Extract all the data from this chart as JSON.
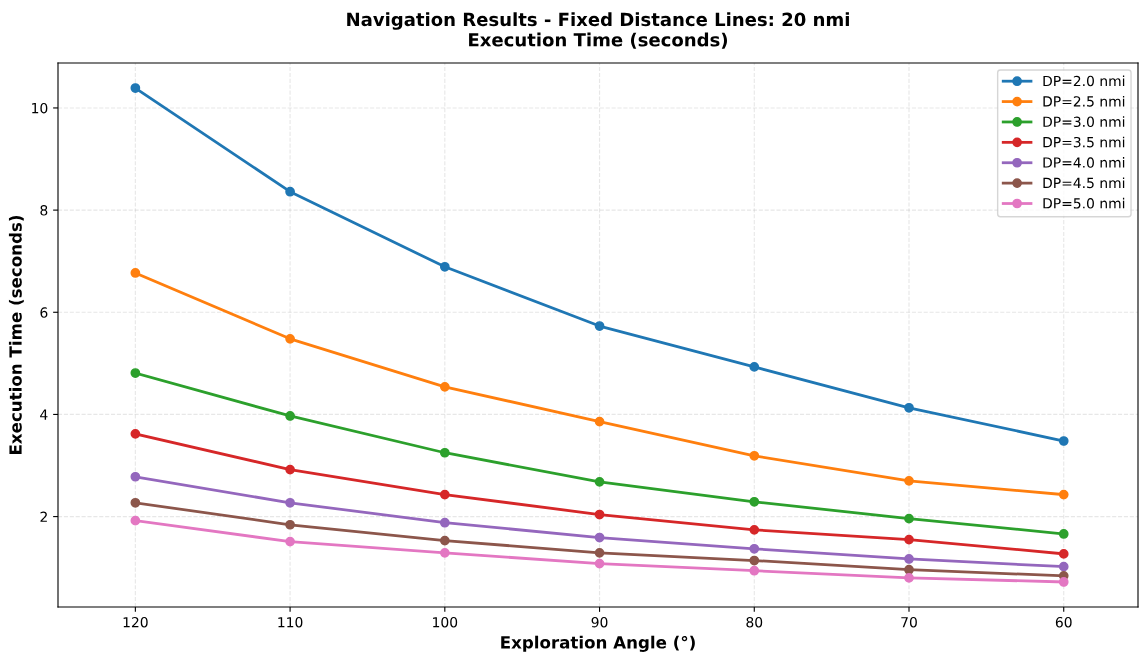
{
  "chart_data": {
    "type": "line",
    "title": "Navigation Results - Fixed Distance Lines: 20 nmi\nExecution Time (seconds)",
    "xlabel": "Exploration Angle (°)",
    "ylabel": "Execution Time (seconds)",
    "x": [
      120,
      110,
      100,
      90,
      80,
      70,
      60
    ],
    "xlim": [
      125,
      55.2
    ],
    "xticks": [
      120,
      110,
      100,
      90,
      80,
      70,
      60
    ],
    "ylim": [
      0.23,
      10.88
    ],
    "yticks": [
      2,
      4,
      6,
      8,
      10
    ],
    "grid": true,
    "legend": "top right",
    "marker": "circle",
    "line_style": "solid",
    "series": [
      {
        "name": "DP=2.0 nmi",
        "color": "#1f77b4",
        "values": [
          10.39,
          8.36,
          6.89,
          5.73,
          4.93,
          4.13,
          3.48
        ]
      },
      {
        "name": "DP=2.5 nmi",
        "color": "#ff7f0e",
        "values": [
          6.77,
          5.48,
          4.54,
          3.86,
          3.19,
          2.7,
          2.43
        ]
      },
      {
        "name": "DP=3.0 nmi",
        "color": "#2ca02c",
        "values": [
          4.81,
          3.97,
          3.25,
          2.68,
          2.29,
          1.96,
          1.66
        ]
      },
      {
        "name": "DP=3.5 nmi",
        "color": "#d62728",
        "values": [
          3.62,
          2.92,
          2.43,
          2.04,
          1.74,
          1.55,
          1.27
        ]
      },
      {
        "name": "DP=4.0 nmi",
        "color": "#9467bd",
        "values": [
          2.78,
          2.27,
          1.88,
          1.59,
          1.37,
          1.17,
          1.02
        ]
      },
      {
        "name": "DP=4.5 nmi",
        "color": "#8c564b",
        "values": [
          2.27,
          1.84,
          1.53,
          1.29,
          1.14,
          0.96,
          0.84
        ]
      },
      {
        "name": "DP=5.0 nmi",
        "color": "#e377c2",
        "values": [
          1.92,
          1.51,
          1.29,
          1.08,
          0.94,
          0.8,
          0.72
        ]
      }
    ]
  }
}
